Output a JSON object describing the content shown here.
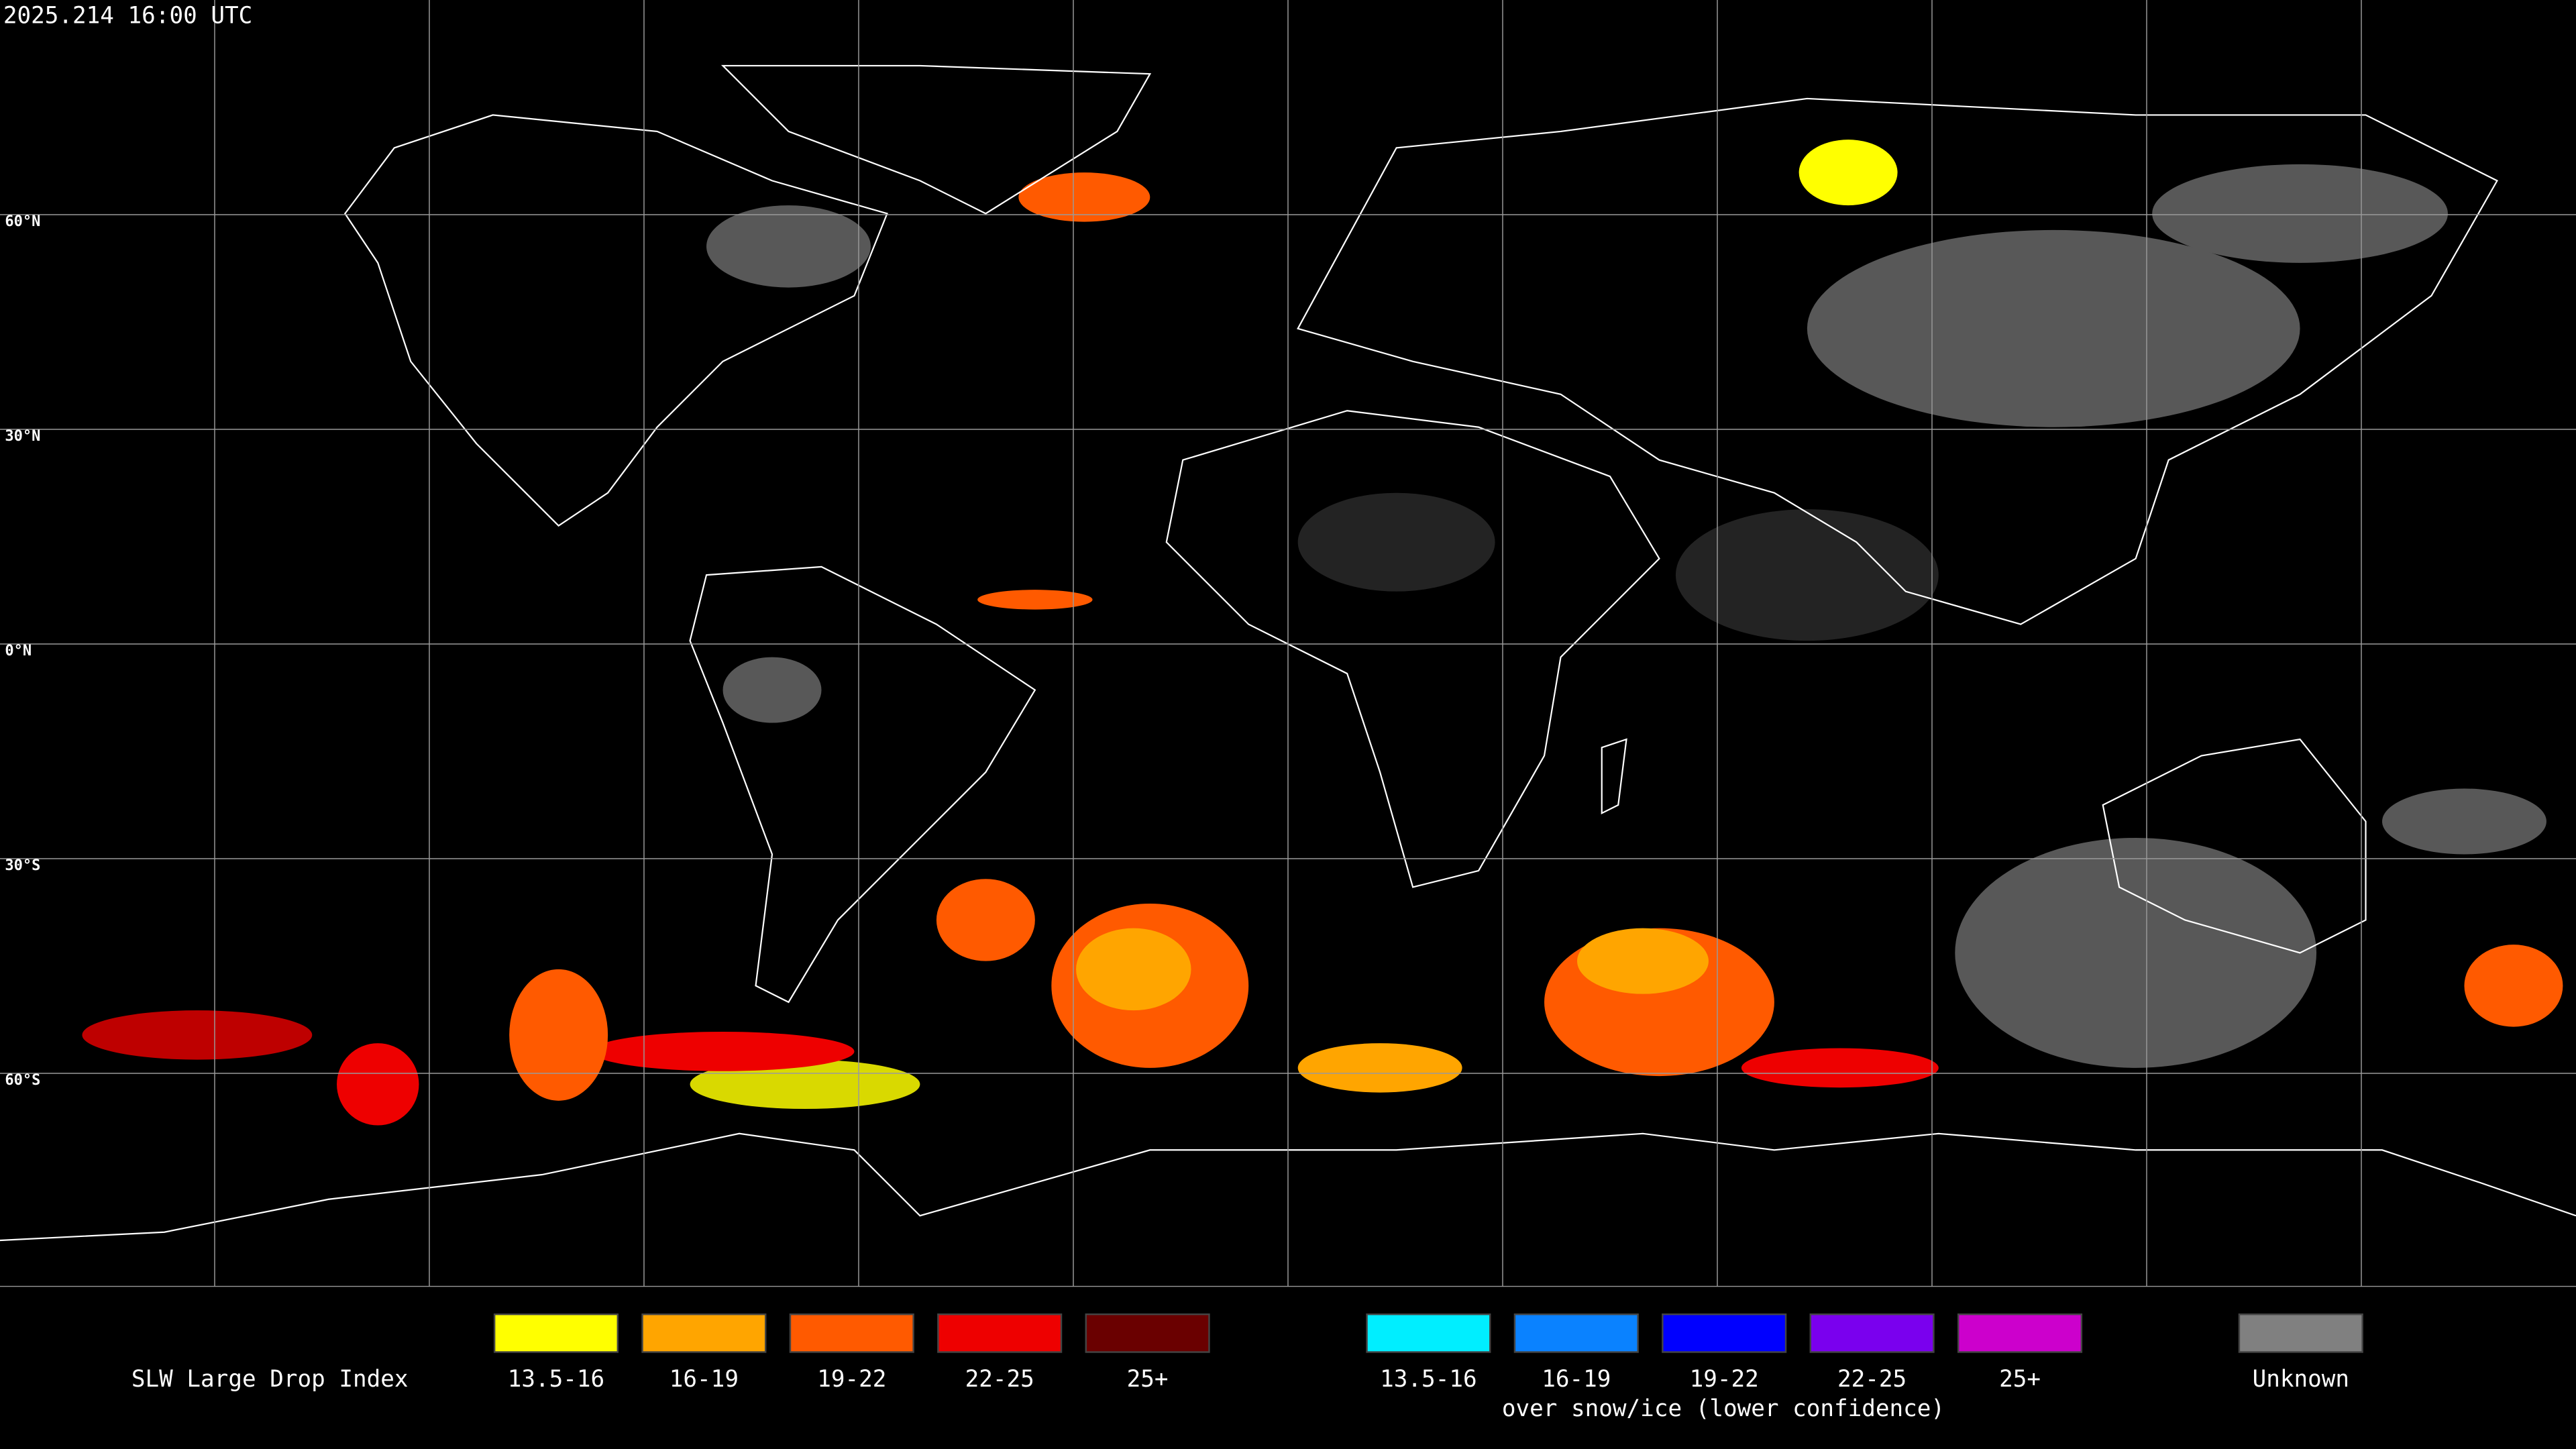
{
  "header": {
    "timestamp": "2025.214 16:00 UTC"
  },
  "latitude_labels": [
    "60°N",
    "30°N",
    "0°N",
    "30°S",
    "60°S"
  ],
  "legend": {
    "title": "SLW Large Drop Index",
    "items": [
      {
        "label": "13.5-16",
        "color": "#ffff00"
      },
      {
        "label": "16-19",
        "color": "#ffa500"
      },
      {
        "label": "19-22",
        "color": "#ff5a00"
      },
      {
        "label": "22-25",
        "color": "#ee0000"
      },
      {
        "label": "25+",
        "color": "#6a0000"
      }
    ],
    "snow_items": [
      {
        "label": "13.5-16",
        "color": "#00eeff"
      },
      {
        "label": "16-19",
        "color": "#0a82ff"
      },
      {
        "label": "19-22",
        "color": "#0000ff"
      },
      {
        "label": "22-25",
        "color": "#7a00ee"
      },
      {
        "label": "25+",
        "color": "#cc00cc"
      }
    ],
    "snow_caption": "over snow/ice (lower confidence)",
    "unknown": {
      "label": "Unknown",
      "color": "#808080"
    }
  }
}
